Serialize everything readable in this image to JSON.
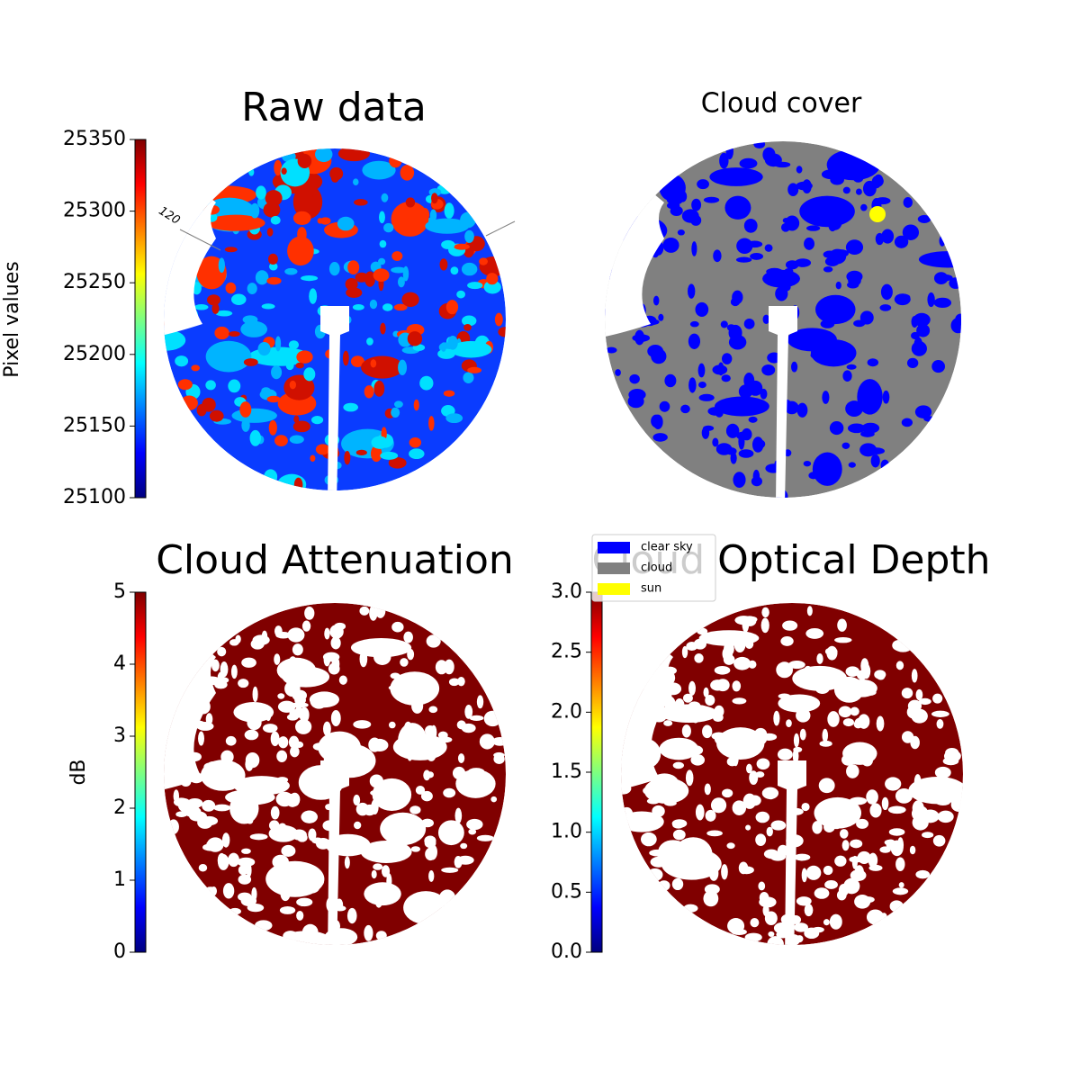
{
  "chart_data": [
    {
      "type": "image",
      "title": "Raw data",
      "annotation": "120",
      "colormap": "jet",
      "colorbar": {
        "label": "Pixel values",
        "lim": [
          25100,
          25350
        ],
        "ticks": [
          25100,
          25150,
          25200,
          25250,
          25300,
          25350
        ]
      }
    },
    {
      "type": "image",
      "title": "Cloud cover",
      "series": [
        {
          "name": "clear sky",
          "color": "#0000ff"
        },
        {
          "name": "cloud",
          "color": "#808080"
        },
        {
          "name": "sun",
          "color": "#ffff00"
        }
      ]
    },
    {
      "type": "image",
      "title": "Cloud Attenuation",
      "colormap": "jet",
      "colorbar": {
        "label": "dB",
        "lim": [
          0,
          5
        ],
        "ticks": [
          0,
          1,
          2,
          3,
          4,
          5
        ]
      }
    },
    {
      "type": "image",
      "title": "Cloud Optical Depth",
      "colormap": "jet",
      "colorbar": {
        "lim": [
          0,
          3
        ],
        "ticks": [
          {
            "value": 0,
            "label": "0.0"
          },
          0.5,
          {
            "value": 1,
            "label": "1.0"
          },
          1.5,
          {
            "value": 2,
            "label": "2.0"
          },
          2.5,
          {
            "value": 3,
            "label": "3.0"
          }
        ]
      }
    }
  ]
}
